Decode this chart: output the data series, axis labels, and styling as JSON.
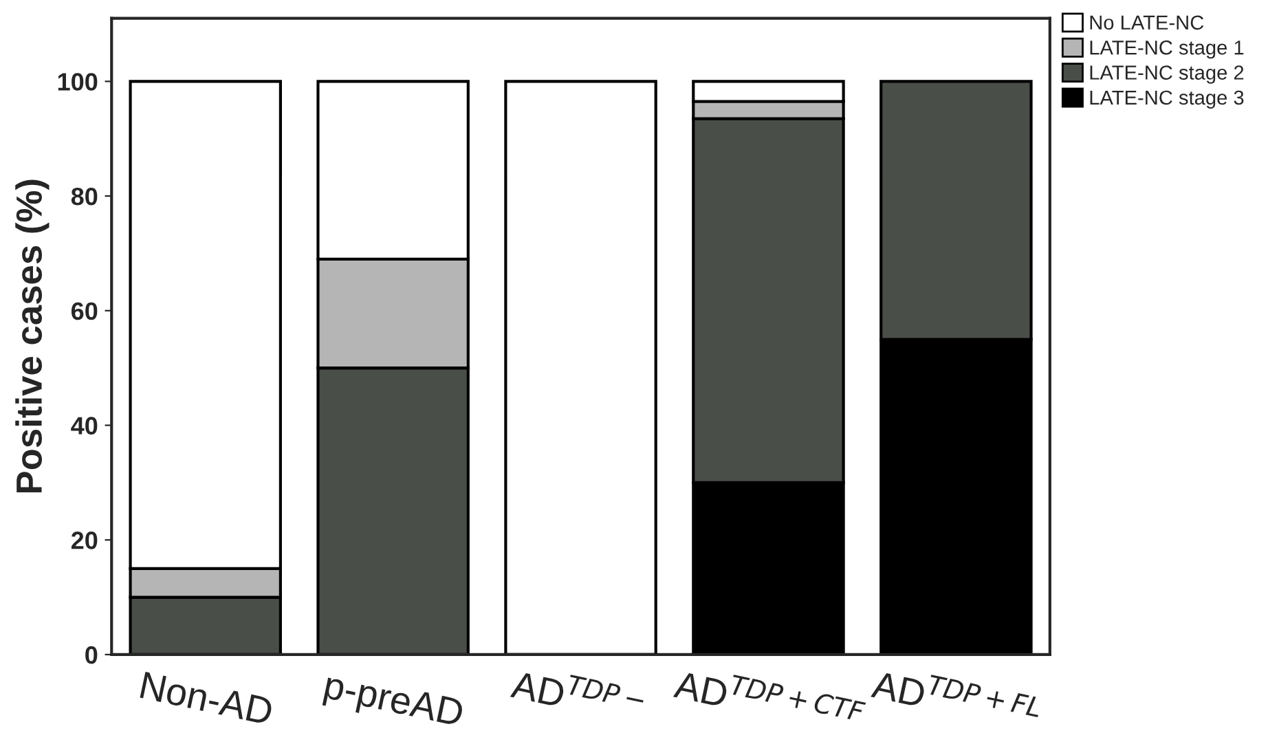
{
  "chart_data": {
    "type": "bar",
    "stacked": true,
    "ylabel": "Positive cases (%)",
    "categories": [
      "Non-AD",
      "p-preAD",
      "AD$^{TDP−}$",
      "AD$^{TDP+CTF}$",
      "AD$^{TDP+FL}$"
    ],
    "series": [
      {
        "name": "LATE-NC stage 3",
        "color": "#000000",
        "values": [
          null,
          null,
          null,
          30,
          55
        ]
      },
      {
        "name": "LATE-NC stage 2",
        "color": "#4a4e48",
        "values": [
          10,
          50,
          null,
          63.5,
          45
        ]
      },
      {
        "name": "LATE-NC stage 1",
        "color": "#b5b5b5",
        "values": [
          5,
          19,
          null,
          3,
          null
        ]
      },
      {
        "name": "No LATE-NC",
        "color": "#ffffff",
        "values": [
          85,
          31,
          100,
          3.5,
          null
        ]
      }
    ],
    "ylim": [
      0,
      111
    ],
    "yticks": [
      0,
      20,
      40,
      60,
      80,
      100
    ],
    "grid": false,
    "legend": "top right"
  }
}
